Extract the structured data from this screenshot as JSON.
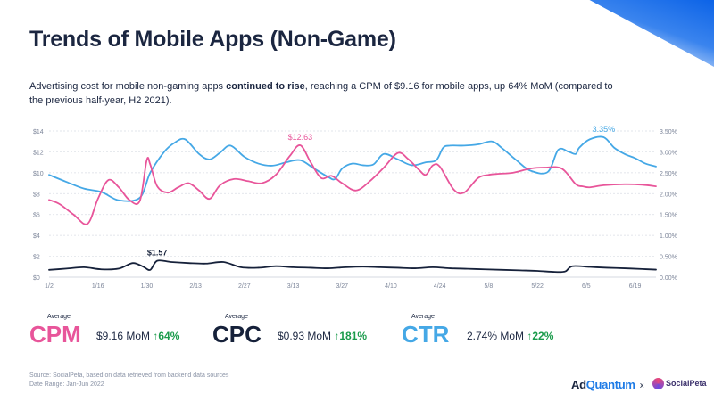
{
  "title": "Trends of Mobile Apps (Non-Game)",
  "description": {
    "part1": "Advertising cost for mobile non-gaming apps ",
    "bold": "continued to rise",
    "part2": ", reaching a CPM of $9.16 for mobile apps, up 64% MoM (compared to the previous half-year, H2 2021)."
  },
  "colors": {
    "cpm": "#e8559a",
    "cpc": "#16213a",
    "ctr": "#45a8e6",
    "up": "#1a9b4b"
  },
  "chart_data": {
    "type": "line",
    "title": "",
    "x_tick_labels": [
      "1/2",
      "1/16",
      "1/30",
      "2/13",
      "2/27",
      "3/13",
      "3/27",
      "4/10",
      "4/24",
      "5/8",
      "5/22",
      "6/5",
      "6/19"
    ],
    "left_axis": {
      "ylim": [
        0,
        14
      ],
      "tick_labels": [
        "$0",
        "$2",
        "$4",
        "$6",
        "$8",
        "$10",
        "$12",
        "$14"
      ]
    },
    "right_axis": {
      "ylim": [
        0,
        3.5
      ],
      "tick_labels": [
        "0.00%",
        "0.50%",
        "1.00%",
        "1.50%",
        "2.00%",
        "2.50%",
        "3.00%",
        "3.50%"
      ]
    },
    "grid": true,
    "series": [
      {
        "key": "ctr",
        "axis": "right",
        "x": [
          0,
          5,
          10,
          15,
          20,
          26,
          29,
          33,
          36,
          39,
          43,
          46,
          49,
          52,
          56,
          60,
          64,
          68,
          72,
          76,
          80,
          82,
          84,
          87,
          90,
          93,
          96,
          100,
          104,
          108,
          111,
          113,
          115,
          119,
          123,
          127,
          130,
          134,
          138,
          143,
          146,
          149,
          151,
          152,
          155,
          159,
          162,
          165,
          168,
          171,
          174
        ],
        "y": [
          2.45,
          2.28,
          2.12,
          2.04,
          1.84,
          1.9,
          2.5,
          3.0,
          3.22,
          3.3,
          2.95,
          2.82,
          2.98,
          3.15,
          2.88,
          2.72,
          2.67,
          2.75,
          2.8,
          2.6,
          2.4,
          2.35,
          2.6,
          2.72,
          2.68,
          2.7,
          2.95,
          2.82,
          2.68,
          2.75,
          2.8,
          3.1,
          3.15,
          3.15,
          3.18,
          3.25,
          3.08,
          2.8,
          2.55,
          2.52,
          3.05,
          3.0,
          2.95,
          3.1,
          3.3,
          3.35,
          3.1,
          2.95,
          2.85,
          2.72,
          2.65
        ],
        "label": "3.35%",
        "label_index": 45
      },
      {
        "key": "cpm",
        "axis": "left",
        "x": [
          0,
          3,
          7,
          11,
          14,
          17,
          20,
          23,
          26,
          28,
          29,
          31,
          34,
          37,
          40,
          43,
          46,
          49,
          53,
          57,
          61,
          65,
          69,
          72,
          75,
          78,
          81,
          84,
          88,
          92,
          96,
          100,
          103,
          106,
          108,
          110,
          112,
          116,
          119,
          123,
          126,
          129,
          133,
          138,
          142,
          147,
          151,
          153,
          155,
          159,
          165,
          170,
          174
        ],
        "y": [
          7.4,
          7.0,
          6.0,
          5.1,
          7.5,
          9.3,
          8.6,
          7.4,
          7.3,
          11.2,
          10.8,
          8.7,
          8.1,
          8.6,
          9.0,
          8.3,
          7.5,
          8.8,
          9.4,
          9.2,
          9.0,
          9.8,
          11.6,
          12.63,
          11.0,
          9.5,
          9.7,
          9.0,
          8.3,
          9.2,
          10.5,
          11.9,
          11.3,
          10.3,
          9.8,
          10.7,
          10.6,
          8.4,
          8.1,
          9.5,
          9.8,
          9.9,
          10.0,
          10.4,
          10.5,
          10.4,
          8.9,
          8.7,
          8.6,
          8.8,
          8.9,
          8.85,
          8.7
        ],
        "label": "$12.63",
        "label_index": 23
      },
      {
        "key": "cpc",
        "axis": "left",
        "x": [
          0,
          5,
          10,
          15,
          20,
          24,
          27,
          29,
          31,
          35,
          40,
          45,
          50,
          55,
          60,
          65,
          70,
          75,
          80,
          85,
          90,
          95,
          100,
          105,
          110,
          115,
          120,
          125,
          130,
          135,
          140,
          145,
          148,
          150,
          155,
          160,
          165,
          170,
          174
        ],
        "y": [
          0.7,
          0.82,
          0.95,
          0.75,
          0.82,
          1.35,
          1.0,
          0.7,
          1.57,
          1.45,
          1.35,
          1.3,
          1.45,
          0.95,
          0.9,
          1.05,
          0.95,
          0.9,
          0.85,
          0.95,
          1.0,
          0.95,
          0.9,
          0.85,
          0.95,
          0.85,
          0.8,
          0.75,
          0.7,
          0.65,
          0.6,
          0.5,
          0.55,
          1.05,
          0.98,
          0.9,
          0.85,
          0.78,
          0.72
        ],
        "label": "$1.57",
        "label_index": 8
      }
    ]
  },
  "metrics": [
    {
      "avg_label": "Average",
      "name": "CPM",
      "value": "$9.16 MoM",
      "change": "↑64%"
    },
    {
      "avg_label": "Average",
      "name": "CPC",
      "value": "$0.93 MoM",
      "change": "↑181%"
    },
    {
      "avg_label": "Average",
      "name": "CTR",
      "value": "2.74% MoM",
      "change": "↑22%"
    }
  ],
  "source": {
    "line1": "Source: SocialPeta, based on data retrieved from backend data sources",
    "line2": "Date Range: Jan-Jun 2022"
  },
  "logos": {
    "adquantum_a": "Ad",
    "adquantum_b": "Quantum",
    "separator": "x",
    "socialpeta": "SocialPeta"
  }
}
